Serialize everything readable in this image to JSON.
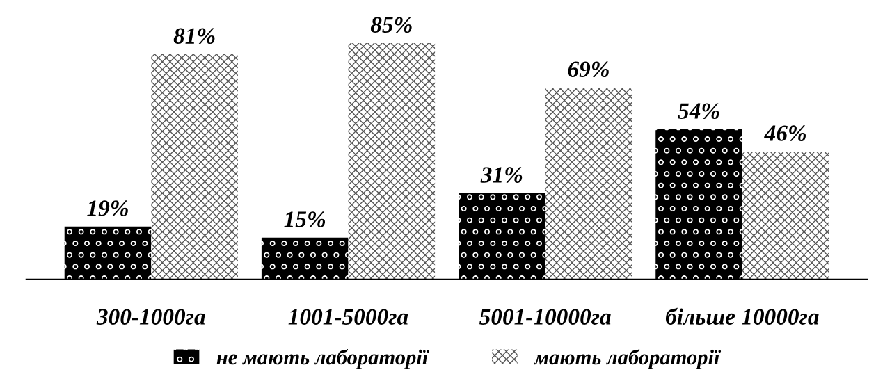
{
  "chart_data": {
    "type": "bar",
    "categories": [
      "300-1000га",
      "1001-5000га",
      "5001-10000га",
      "більше 10000га"
    ],
    "series": [
      {
        "name": "не мають лабораторії",
        "color": "#000000",
        "values": [
          19,
          15,
          31,
          54
        ],
        "value_labels": [
          "19%",
          "15%",
          "31%",
          "54%"
        ]
      },
      {
        "name": "мають лабораторії",
        "color": "#ffffff",
        "values": [
          81,
          85,
          69,
          46
        ],
        "value_labels": [
          "81%",
          "85%",
          "69%",
          "46%"
        ]
      }
    ],
    "legend": "bottom",
    "grid": false
  }
}
